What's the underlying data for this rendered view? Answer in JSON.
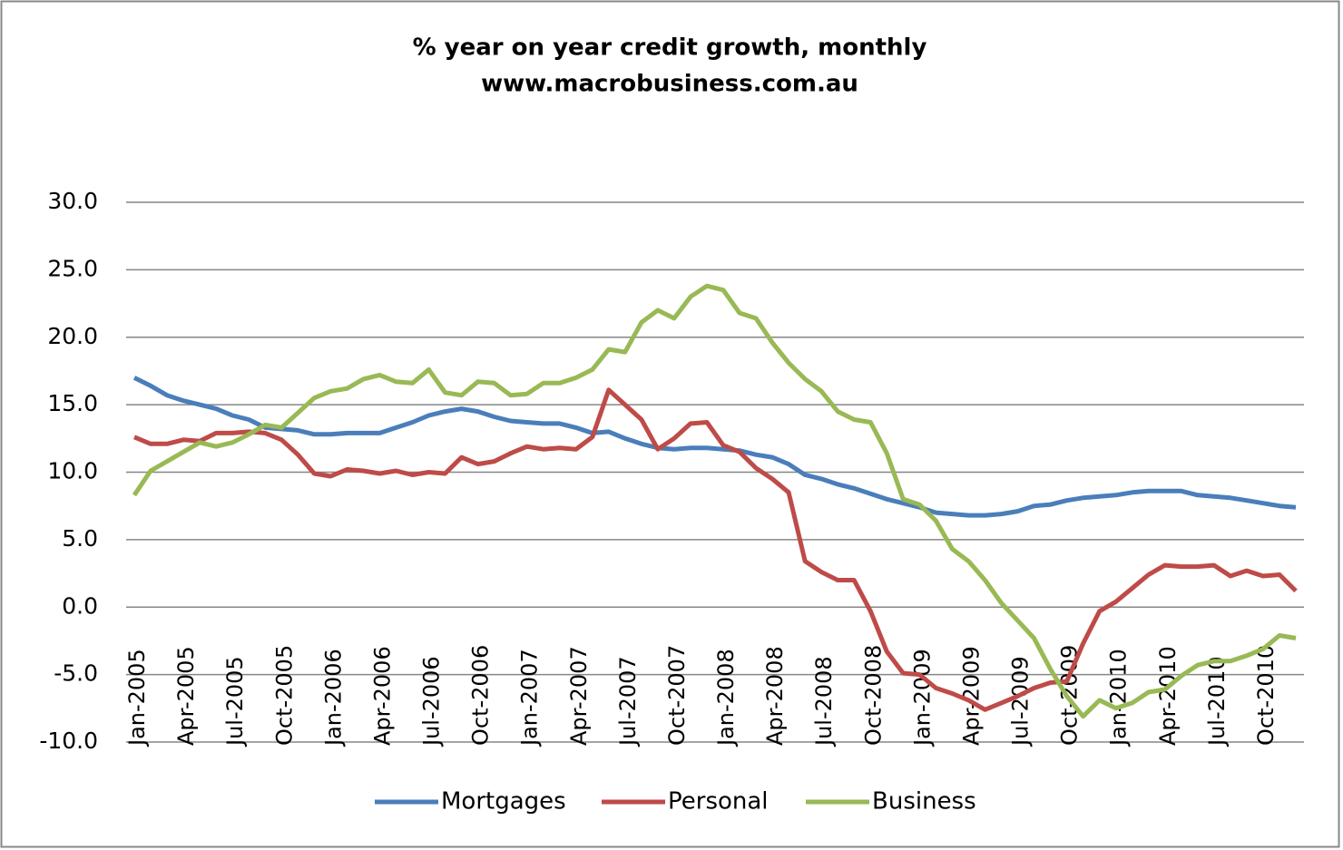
{
  "chart_data": {
    "type": "line",
    "title": "% year on year credit growth, monthly",
    "subtitle": "www.macrobusiness.com.au",
    "categories": [
      "Jan-2005",
      null,
      null,
      "Apr-2005",
      null,
      null,
      "Jul-2005",
      null,
      null,
      "Oct-2005",
      null,
      null,
      "Jan-2006",
      null,
      null,
      "Apr-2006",
      null,
      null,
      "Jul-2006",
      null,
      null,
      "Oct-2006",
      null,
      null,
      "Jan-2007",
      null,
      null,
      "Apr-2007",
      null,
      null,
      "Jul-2007",
      null,
      null,
      "Oct-2007",
      null,
      null,
      "Jan-2008",
      null,
      null,
      "Apr-2008",
      null,
      null,
      "Jul-2008",
      null,
      null,
      "Oct-2008",
      null,
      null,
      "Jan-2009",
      null,
      null,
      "Apr-2009",
      null,
      null,
      "Jul-2009",
      null,
      null,
      "Oct-2009",
      null,
      null,
      "Jan-2010",
      null,
      null,
      "Apr-2010",
      null,
      null,
      "Jul-2010",
      null,
      null,
      "Oct-2010",
      null,
      null
    ],
    "series": [
      {
        "name": "Mortgages",
        "color": "#4a7ebb",
        "values": [
          17.0,
          16.4,
          15.7,
          15.3,
          15.0,
          14.7,
          14.2,
          13.9,
          13.3,
          13.2,
          13.1,
          12.8,
          12.8,
          12.9,
          12.9,
          12.9,
          13.3,
          13.7,
          14.2,
          14.5,
          14.7,
          14.5,
          14.1,
          13.8,
          13.7,
          13.6,
          13.6,
          13.3,
          12.9,
          13.0,
          12.5,
          12.1,
          11.8,
          11.7,
          11.8,
          11.8,
          11.7,
          11.6,
          11.3,
          11.1,
          10.6,
          9.8,
          9.5,
          9.1,
          8.8,
          8.4,
          8.0,
          7.7,
          7.4,
          7.0,
          6.9,
          6.8,
          6.8,
          6.9,
          7.1,
          7.5,
          7.6,
          7.9,
          8.1,
          8.2,
          8.3,
          8.5,
          8.6,
          8.6,
          8.6,
          8.3,
          8.2,
          8.1,
          7.9,
          7.7,
          7.5,
          7.4
        ]
      },
      {
        "name": "Personal",
        "color": "#be4b48",
        "values": [
          12.6,
          12.1,
          12.1,
          12.4,
          12.3,
          12.9,
          12.9,
          13.0,
          12.9,
          12.4,
          11.3,
          9.9,
          9.7,
          10.2,
          10.1,
          9.9,
          10.1,
          9.8,
          10.0,
          9.9,
          11.1,
          10.6,
          10.8,
          11.4,
          11.9,
          11.7,
          11.8,
          11.7,
          12.6,
          16.1,
          15.0,
          13.9,
          11.7,
          12.5,
          13.6,
          13.7,
          12.0,
          11.5,
          10.3,
          9.5,
          8.5,
          3.4,
          2.6,
          2.0,
          2.0,
          -0.3,
          -3.3,
          -4.9,
          -5.0,
          -6.0,
          -6.4,
          -6.9,
          -7.6,
          -7.1,
          -6.6,
          -6.0,
          -5.6,
          -5.5,
          -2.7,
          -0.3,
          0.4,
          1.4,
          2.4,
          3.1,
          3.0,
          3.0,
          3.1,
          2.3,
          2.7,
          2.3,
          2.4,
          1.2
        ]
      },
      {
        "name": "Business",
        "color": "#98b954",
        "values": [
          8.3,
          10.1,
          10.8,
          11.5,
          12.2,
          11.9,
          12.2,
          12.8,
          13.5,
          13.3,
          14.4,
          15.5,
          16.0,
          16.2,
          16.9,
          17.2,
          16.7,
          16.6,
          17.6,
          15.9,
          15.7,
          16.7,
          16.6,
          15.7,
          15.8,
          16.6,
          16.6,
          17.0,
          17.6,
          19.1,
          18.9,
          21.1,
          22.0,
          21.4,
          23.0,
          23.8,
          23.5,
          21.8,
          21.4,
          19.6,
          18.1,
          16.9,
          16.0,
          14.5,
          13.9,
          13.7,
          11.4,
          8.0,
          7.6,
          6.4,
          4.3,
          3.4,
          2.0,
          0.3,
          -1.0,
          -2.3,
          -4.6,
          -6.6,
          -8.1,
          -6.9,
          -7.5,
          -7.1,
          -6.3,
          -6.1,
          -5.1,
          -4.3,
          -4.0,
          -4.0,
          -3.6,
          -3.1,
          -2.1,
          -2.3
        ]
      }
    ],
    "ylim": [
      -10,
      30
    ],
    "yticks": [
      {
        "value": -10,
        "label": "-10.0"
      },
      {
        "value": -5,
        "label": "-5.0"
      },
      {
        "value": 0,
        "label": "0.0"
      },
      {
        "value": 5,
        "label": "5.0"
      },
      {
        "value": 10,
        "label": "10.0"
      },
      {
        "value": 15,
        "label": "15.0"
      },
      {
        "value": 20,
        "label": "20.0"
      },
      {
        "value": 25,
        "label": "25.0"
      },
      {
        "value": 30,
        "label": "30.0"
      }
    ],
    "grid": true,
    "legend": "bottom"
  }
}
